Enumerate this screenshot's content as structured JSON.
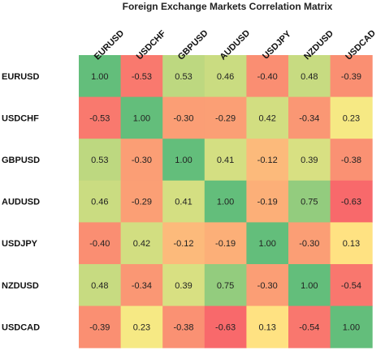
{
  "chart_data": {
    "type": "heatmap",
    "title": "Foreign Exchange Markets Correlation Matrix",
    "columns": [
      "EURUSD",
      "USDCHF",
      "GBPUSD",
      "AUDUSD",
      "USDJPY",
      "NZDUSD",
      "USDCAD"
    ],
    "rows": [
      "EURUSD",
      "USDCHF",
      "GBPUSD",
      "AUDUSD",
      "USDJPY",
      "NZDUSD",
      "USDCAD"
    ],
    "values": [
      [
        1.0,
        -0.53,
        0.53,
        0.46,
        -0.4,
        0.48,
        -0.39
      ],
      [
        -0.53,
        1.0,
        -0.3,
        -0.29,
        0.42,
        -0.34,
        0.23
      ],
      [
        0.53,
        -0.3,
        1.0,
        0.41,
        -0.12,
        0.39,
        -0.38
      ],
      [
        0.46,
        -0.29,
        0.41,
        1.0,
        -0.19,
        0.75,
        -0.63
      ],
      [
        -0.4,
        0.42,
        -0.12,
        -0.19,
        1.0,
        -0.3,
        0.13
      ],
      [
        0.48,
        -0.34,
        0.39,
        0.75,
        -0.3,
        1.0,
        -0.54
      ],
      [
        -0.39,
        0.23,
        -0.38,
        -0.63,
        0.13,
        -0.54,
        1.0
      ]
    ],
    "value_range": [
      -0.63,
      1.0
    ],
    "colors": {
      "low": "#f8696b",
      "mid": "#ffeb84",
      "high": "#63be7b"
    },
    "grid": false
  }
}
